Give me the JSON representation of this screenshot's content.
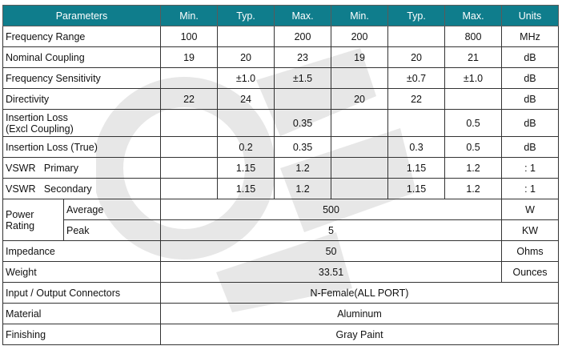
{
  "header": [
    "Parameters",
    "Min.",
    "Typ.",
    "Max.",
    "Min.",
    "Typ.",
    "Max.",
    "Units"
  ],
  "rows": [
    {
      "param": "Frequency Range",
      "v": [
        "100",
        "",
        "200",
        "200",
        "",
        "800"
      ],
      "unit": "MHz"
    },
    {
      "param": "Nominal Coupling",
      "v": [
        "19",
        "20",
        "23",
        "19",
        "20",
        "21"
      ],
      "unit": "dB"
    },
    {
      "param": "Frequency Sensitivity",
      "v": [
        "",
        "±1.0",
        "±1.5",
        "",
        "±0.7",
        "±1.0"
      ],
      "unit": "dB"
    },
    {
      "param": "Directivity",
      "v": [
        "22",
        "24",
        "",
        "20",
        "22",
        ""
      ],
      "unit": "dB"
    },
    {
      "param_line1": "Insertion Loss",
      "param_line2": "(Excl Coupling)",
      "v": [
        "",
        "",
        "0.35",
        "",
        "",
        "0.5"
      ],
      "unit": "dB"
    },
    {
      "param": "Insertion Loss (True)",
      "v": [
        "",
        "0.2",
        "0.35",
        "",
        "0.3",
        "0.5"
      ],
      "unit": "dB"
    },
    {
      "param": "VSWR   Primary",
      "v": [
        "",
        "1.15",
        "1.2",
        "",
        "1.15",
        "1.2"
      ],
      "unit": ": 1"
    },
    {
      "param": "VSWR   Secondary",
      "v": [
        "",
        "1.15",
        "1.2",
        "",
        "1.15",
        "1.2"
      ],
      "unit": ": 1"
    }
  ],
  "power": {
    "label_line1": "Power",
    "label_line2": "Rating",
    "average": {
      "label": "Average",
      "value": "500",
      "unit": "W"
    },
    "peak": {
      "label": "Peak",
      "value": "5",
      "unit": "KW"
    }
  },
  "impedance": {
    "label": "Impedance",
    "value": "50",
    "unit": "Ohms"
  },
  "weight": {
    "label": "Weight",
    "value": "33.51",
    "unit": "Ounces"
  },
  "connectors": {
    "label": "Input / Output Connectors",
    "value": "N-Female(ALL PORT)"
  },
  "material": {
    "label": "Material",
    "value": "Aluminum"
  },
  "finishing": {
    "label": "Finishing",
    "value": "Gray Paint"
  }
}
